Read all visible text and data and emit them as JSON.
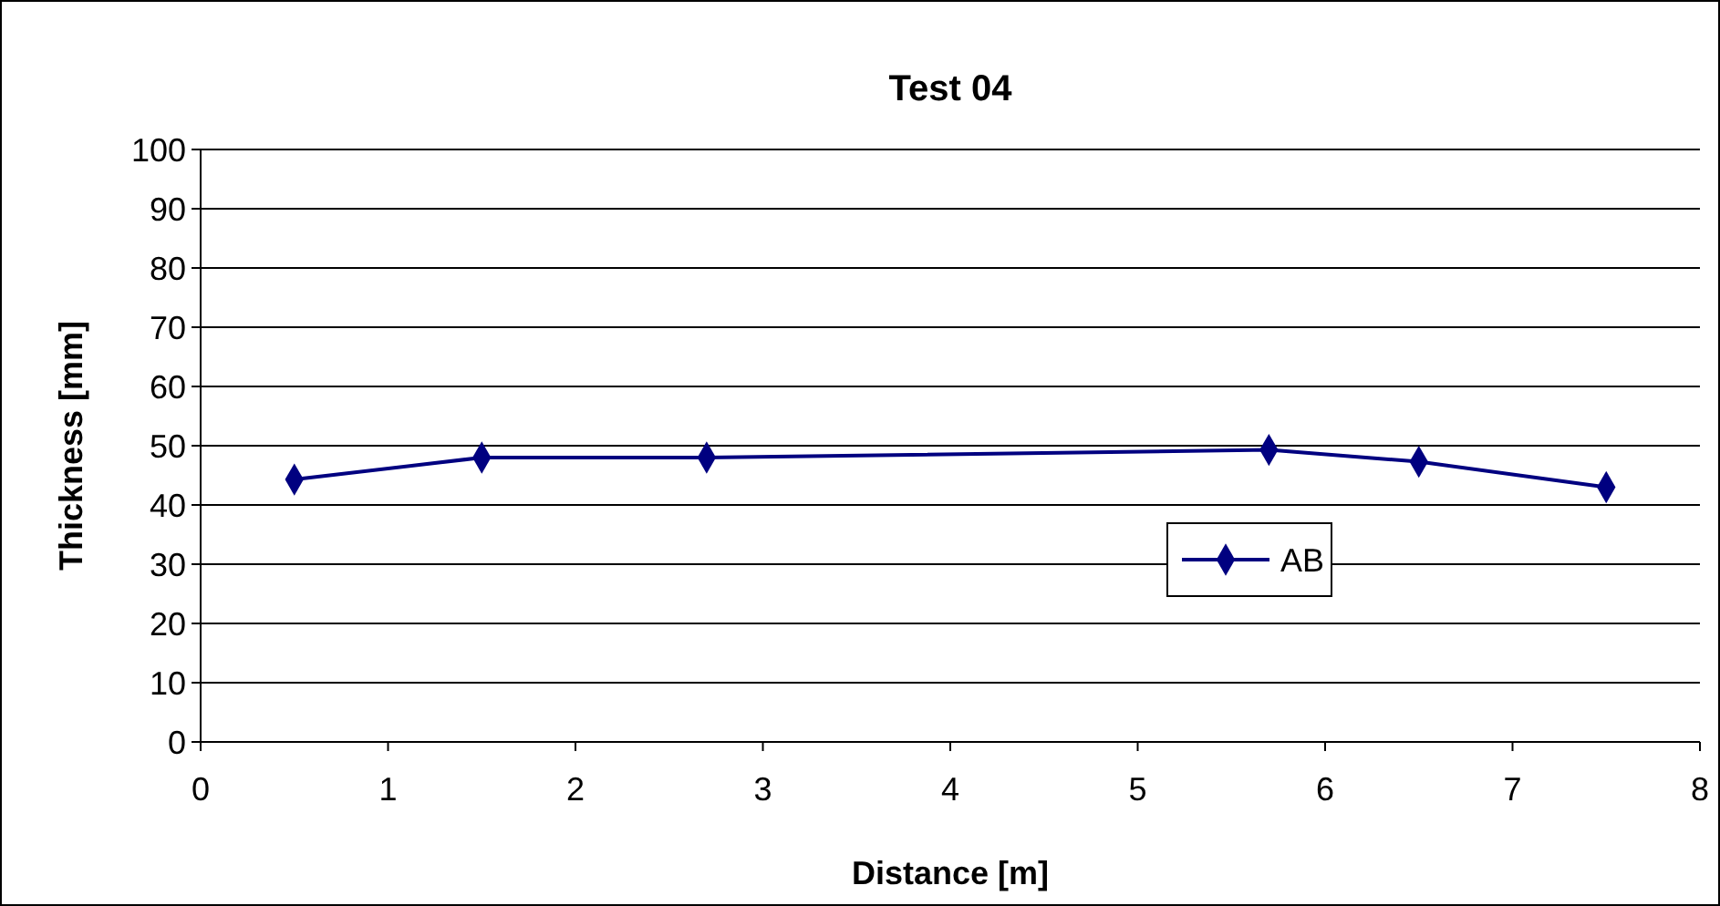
{
  "chart_data": {
    "type": "line",
    "title": "Test 04",
    "xlabel": "Distance [m]",
    "ylabel": "Thickness [mm]",
    "x": [
      0.5,
      1.5,
      2.7,
      5.7,
      6.5,
      7.5
    ],
    "series": [
      {
        "name": "AB",
        "color": "#000080",
        "values": [
          44.3,
          48,
          48,
          49.3,
          47.3,
          43
        ]
      }
    ],
    "xlim": [
      0,
      8
    ],
    "xticks": [
      0,
      1,
      2,
      3,
      4,
      5,
      6,
      7,
      8
    ],
    "ylim": [
      0,
      100
    ],
    "yticks": [
      0,
      10,
      20,
      30,
      40,
      50,
      60,
      70,
      80,
      90,
      100
    ],
    "grid": "y",
    "legend": "right",
    "marker": "diamond",
    "line_style": "solid"
  }
}
